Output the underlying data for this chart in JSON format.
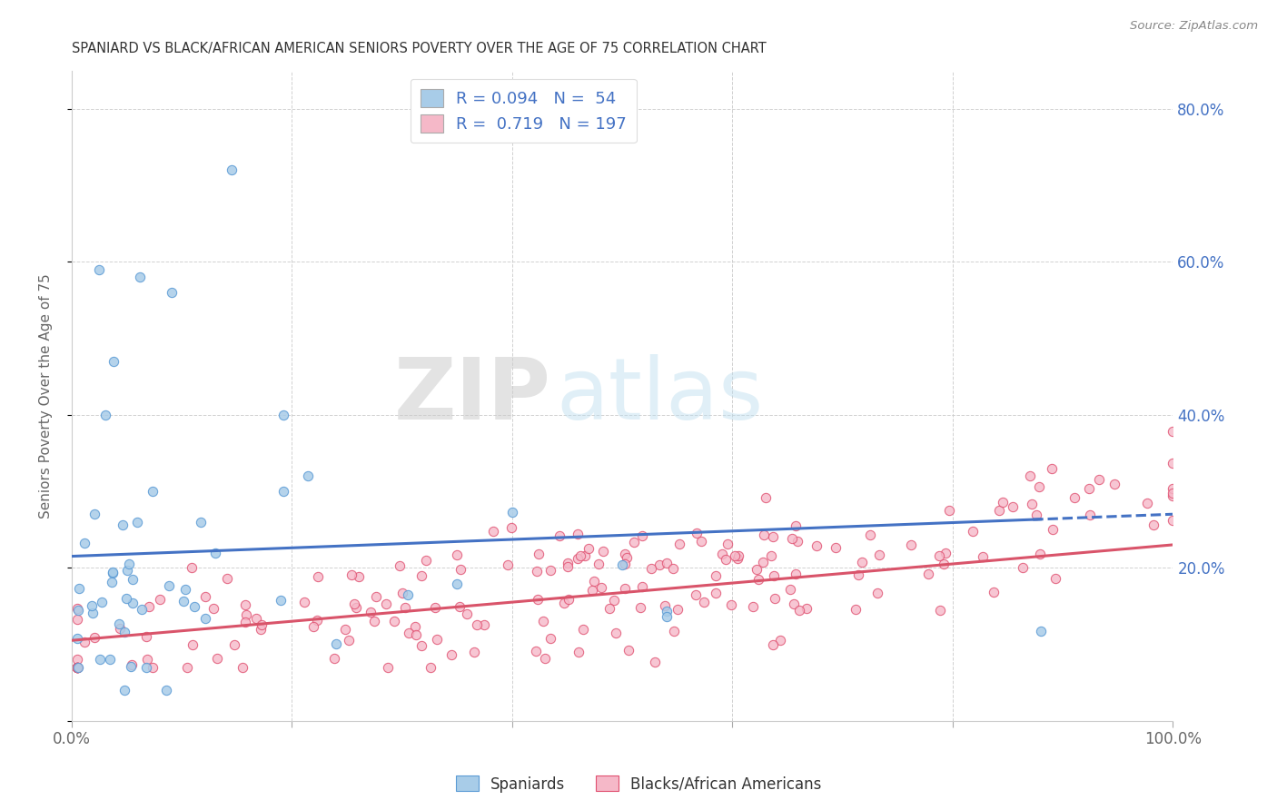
{
  "title": "SPANIARD VS BLACK/AFRICAN AMERICAN SENIORS POVERTY OVER THE AGE OF 75 CORRELATION CHART",
  "source": "Source: ZipAtlas.com",
  "ylabel": "Seniors Poverty Over the Age of 75",
  "xlim": [
    0,
    1.0
  ],
  "ylim": [
    0,
    0.85
  ],
  "blue_color": "#a8cce8",
  "pink_color": "#f5b8c8",
  "blue_edge_color": "#5b9bd5",
  "pink_edge_color": "#e05070",
  "blue_line_color": "#4472c4",
  "pink_line_color": "#d9546a",
  "blue_R": 0.094,
  "blue_N": 54,
  "pink_R": 0.719,
  "pink_N": 197,
  "legend_label_blue": "Spaniards",
  "legend_label_pink": "Blacks/African Americans",
  "watermark_zip": "ZIP",
  "watermark_atlas": "atlas",
  "background_color": "#ffffff",
  "grid_color": "#cccccc",
  "title_color": "#333333",
  "right_axis_color": "#4472c4"
}
